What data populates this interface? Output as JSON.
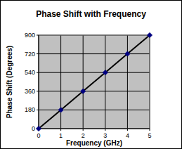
{
  "chart_data": {
    "type": "line",
    "title": "Phase Shift with Frequency",
    "x_label": "Frequency (GHz)",
    "y_label": "Phase Shift (Degrees)",
    "x": [
      0,
      1,
      2,
      3,
      4,
      5
    ],
    "values": [
      0,
      180,
      360,
      540,
      720,
      900
    ],
    "color": "#000000",
    "marker": "diamond",
    "line_style": "solid",
    "xlim": [
      0,
      5
    ],
    "xticks": [
      0,
      1,
      2,
      3,
      4,
      5
    ],
    "ylim": [
      0,
      900
    ],
    "yticks": [
      0,
      180,
      360,
      540,
      720,
      900
    ],
    "grid": true
  }
}
